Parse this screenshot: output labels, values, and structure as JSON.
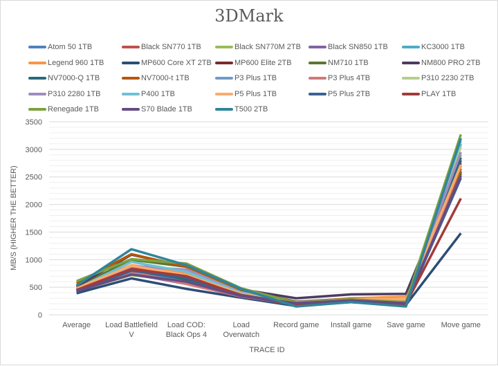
{
  "chart_data": {
    "type": "line",
    "title": "3DMark",
    "xlabel": "TRACE ID",
    "ylabel": "MB/S (HIGHER THE BETTER)",
    "ylim": [
      0,
      3500
    ],
    "yticks": [
      0,
      500,
      1000,
      1500,
      2000,
      2500,
      3000,
      3500
    ],
    "grid": true,
    "legend_position": "top",
    "categories": [
      [
        "Average"
      ],
      [
        "Load Battlefield",
        "V"
      ],
      [
        "Load COD:",
        "Black Ops 4"
      ],
      [
        "Load",
        "Overwatch"
      ],
      [
        "Record game"
      ],
      [
        "Install game"
      ],
      [
        "Save game"
      ],
      [
        "Move game"
      ]
    ],
    "series": [
      {
        "name": "Atom 50 1TB",
        "color": "#4f81bd",
        "values": [
          450,
          800,
          700,
          360,
          190,
          250,
          200,
          2550
        ]
      },
      {
        "name": "Black SN770 1TB",
        "color": "#c0504d",
        "values": [
          470,
          850,
          720,
          370,
          200,
          260,
          210,
          2600
        ]
      },
      {
        "name": "Black SN770M 2TB",
        "color": "#9bbb59",
        "values": [
          430,
          720,
          600,
          340,
          200,
          250,
          190,
          2900
        ]
      },
      {
        "name": "Black SN850 1TB",
        "color": "#8064a2",
        "values": [
          440,
          740,
          560,
          330,
          210,
          260,
          200,
          2750
        ]
      },
      {
        "name": "KC3000 1TB",
        "color": "#4bacc6",
        "values": [
          520,
          980,
          700,
          400,
          190,
          250,
          180,
          3100
        ]
      },
      {
        "name": "Legend 960 1TB",
        "color": "#f79646",
        "values": [
          480,
          900,
          760,
          380,
          220,
          300,
          330,
          2700
        ]
      },
      {
        "name": "MP600 Core XT 2TB",
        "color": "#2c4d75",
        "values": [
          390,
          660,
          470,
          310,
          160,
          230,
          180,
          1480
        ]
      },
      {
        "name": "MP600 Elite 2TB",
        "color": "#772c2a",
        "values": [
          460,
          820,
          640,
          350,
          210,
          270,
          220,
          2580
        ]
      },
      {
        "name": "NM710 1TB",
        "color": "#5f7530",
        "values": [
          500,
          1000,
          870,
          450,
          240,
          290,
          260,
          2600
        ]
      },
      {
        "name": "NM800 PRO 2TB",
        "color": "#4d3b62",
        "values": [
          520,
          1090,
          880,
          460,
          300,
          370,
          380,
          2800
        ]
      },
      {
        "name": "NV7000-Q 1TB",
        "color": "#276a7c",
        "values": [
          420,
          780,
          650,
          350,
          200,
          250,
          200,
          2850
        ]
      },
      {
        "name": "NV7000-t 1TB",
        "color": "#b65708",
        "values": [
          570,
          1100,
          870,
          460,
          230,
          290,
          250,
          2650
        ]
      },
      {
        "name": "P3 Plus 1TB",
        "color": "#729aca",
        "values": [
          440,
          760,
          600,
          340,
          180,
          240,
          170,
          2520
        ]
      },
      {
        "name": "P3 Plus 4TB",
        "color": "#d07a78",
        "values": [
          450,
          780,
          560,
          330,
          200,
          250,
          190,
          2700
        ]
      },
      {
        "name": "P310 2230 2TB",
        "color": "#b4cf8a",
        "values": [
          460,
          820,
          700,
          360,
          220,
          270,
          240,
          3050
        ]
      },
      {
        "name": "P310 2280 1TB",
        "color": "#a08cc0",
        "values": [
          430,
          880,
          820,
          400,
          230,
          280,
          250,
          2950
        ]
      },
      {
        "name": "P400 1TB",
        "color": "#6fc1d6",
        "values": [
          470,
          960,
          780,
          390,
          220,
          270,
          230,
          3150
        ]
      },
      {
        "name": "P5 Plus 1TB",
        "color": "#f9ac6d",
        "values": [
          480,
          890,
          720,
          380,
          220,
          280,
          280,
          2720
        ]
      },
      {
        "name": "P5 Plus 2TB",
        "color": "#3a6293",
        "values": [
          420,
          800,
          680,
          360,
          200,
          240,
          190,
          2480
        ]
      },
      {
        "name": "PLAY 1TB",
        "color": "#a23b39",
        "values": [
          450,
          830,
          700,
          350,
          180,
          250,
          200,
          2110
        ]
      },
      {
        "name": "Renegade 1TB",
        "color": "#7da23f",
        "values": [
          610,
          1010,
          930,
          480,
          220,
          280,
          230,
          3270
        ]
      },
      {
        "name": "S70 Blade 1TB",
        "color": "#654b84",
        "values": [
          430,
          730,
          600,
          340,
          210,
          260,
          210,
          2520
        ]
      },
      {
        "name": "T500 2TB",
        "color": "#31859c",
        "values": [
          530,
          1190,
          900,
          470,
          150,
          230,
          150,
          3200
        ]
      }
    ]
  }
}
